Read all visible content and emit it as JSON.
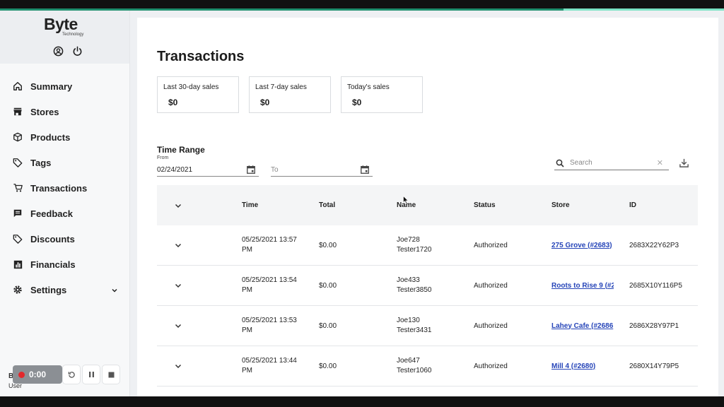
{
  "brand": {
    "name": "Byte",
    "sub": "Technology"
  },
  "sidebar": {
    "items": [
      {
        "label": "Summary",
        "icon": "home-icon"
      },
      {
        "label": "Stores",
        "icon": "store-icon"
      },
      {
        "label": "Products",
        "icon": "box-icon"
      },
      {
        "label": "Tags",
        "icon": "tag-icon"
      },
      {
        "label": "Transactions",
        "icon": "cart-icon"
      },
      {
        "label": "Feedback",
        "icon": "message-icon"
      },
      {
        "label": "Discounts",
        "icon": "discount-tag-icon"
      },
      {
        "label": "Financials",
        "icon": "bar-chart-icon"
      },
      {
        "label": "Settings",
        "icon": "gear-icon"
      }
    ],
    "user_label": "User",
    "brand_short": "Byte"
  },
  "recorder": {
    "time": "0:00"
  },
  "page": {
    "title": "Transactions"
  },
  "cards": [
    {
      "label": "Last 30-day sales",
      "value": "$0"
    },
    {
      "label": "Last 7-day sales",
      "value": "$0"
    },
    {
      "label": "Today's sales",
      "value": "$0"
    }
  ],
  "time_range": {
    "title": "Time Range",
    "from_label": "From",
    "from_value": "02/24/2021",
    "to_placeholder": "To"
  },
  "search": {
    "placeholder": "Search"
  },
  "table": {
    "headers": [
      "Time",
      "Total",
      "Name",
      "Status",
      "Store",
      "ID"
    ],
    "rows": [
      {
        "time1": "05/25/2021 13:57",
        "time2": "PM",
        "total": "$0.00",
        "name1": "Joe728",
        "name2": "Tester1720",
        "status": "Authorized",
        "store": "275 Grove (#2683)",
        "id": "2683X22Y62P3"
      },
      {
        "time1": "05/25/2021 13:54",
        "time2": "PM",
        "total": "$0.00",
        "name1": "Joe433",
        "name2": "Tester3850",
        "status": "Authorized",
        "store": "Roots to Rise 9 (#2",
        "id": "2685X10Y116P5"
      },
      {
        "time1": "05/25/2021 13:53",
        "time2": "PM",
        "total": "$0.00",
        "name1": "Joe130",
        "name2": "Tester3431",
        "status": "Authorized",
        "store": "Lahey Cafe (#2686",
        "id": "2686X28Y97P1"
      },
      {
        "time1": "05/25/2021 13:44",
        "time2": "PM",
        "total": "$0.00",
        "name1": "Joe647",
        "name2": "Tester1060",
        "status": "Authorized",
        "store": "Mill 4 (#2680)",
        "id": "2680X14Y79P5"
      }
    ]
  },
  "colors": {
    "accent": "#1f8f6e",
    "link": "#2544b8",
    "record": "#e3282c"
  }
}
